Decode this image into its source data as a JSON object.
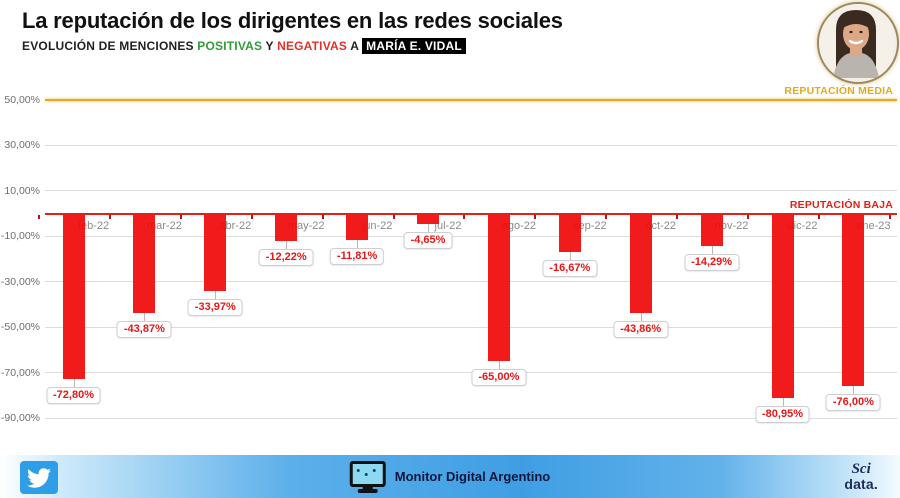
{
  "header": {
    "title": "La reputación de los dirigentes en las redes sociales",
    "subtitle_prefix": "EVOLUCIÓN DE MENCIONES ",
    "subtitle_positive": "POSITIVAS",
    "subtitle_mid": " Y ",
    "subtitle_negative": "NEGATIVAS",
    "subtitle_link": " A ",
    "subtitle_person": "MARÍA E. VIDAL",
    "avatar": "maria-vidal-photo"
  },
  "chart_data": {
    "type": "bar",
    "title": "Evolución de menciones positivas y negativas a María E. Vidal",
    "categories": [
      "feb-22",
      "mar-22",
      "abr-22",
      "may-22",
      "jun-22",
      "jul-22",
      "ago-22",
      "sep-22",
      "oct-22",
      "nov-22",
      "dic-22",
      "ene-23"
    ],
    "values": [
      -72.8,
      -43.87,
      -33.97,
      -12.22,
      -11.81,
      -4.65,
      -65.0,
      -16.67,
      -43.86,
      -14.29,
      -80.95,
      -76.0
    ],
    "value_labels": [
      "-72,80%",
      "-43,87%",
      "-33,97%",
      "-12,22%",
      "-11,81%",
      "-4,65%",
      "-65,00%",
      "-16,67%",
      "-43,86%",
      "-14,29%",
      "-80,95%",
      "-76,00%"
    ],
    "y_ticks": [
      {
        "value": 50,
        "label": "50,00%"
      },
      {
        "value": 30,
        "label": "30,00%"
      },
      {
        "value": 10,
        "label": "10,00%"
      },
      {
        "value": -10,
        "label": "-10,00%"
      },
      {
        "value": -30,
        "label": "-30,00%"
      },
      {
        "value": -50,
        "label": "-50,00%"
      },
      {
        "value": -70,
        "label": "-70,00%"
      },
      {
        "value": -90,
        "label": "-90,00%"
      }
    ],
    "ylim": [
      -95,
      55
    ],
    "grid": true,
    "bar_color": "#F00A0A",
    "reference_lines": [
      {
        "label": "REPUTACIÓN MEDIA",
        "value": 50,
        "color": "#E2A921",
        "key": "media"
      },
      {
        "label": "REPUTACIÓN BAJA",
        "value": 0,
        "color": "#E32119",
        "key": "baja"
      }
    ]
  },
  "footer": {
    "icons": [
      "twitter-icon",
      "monitor-icon"
    ],
    "center_label": "Monitor Digital Argentino",
    "logo_line1": "Sci",
    "logo_line2": "data.",
    "accent_blue": "#3F9EE3"
  }
}
